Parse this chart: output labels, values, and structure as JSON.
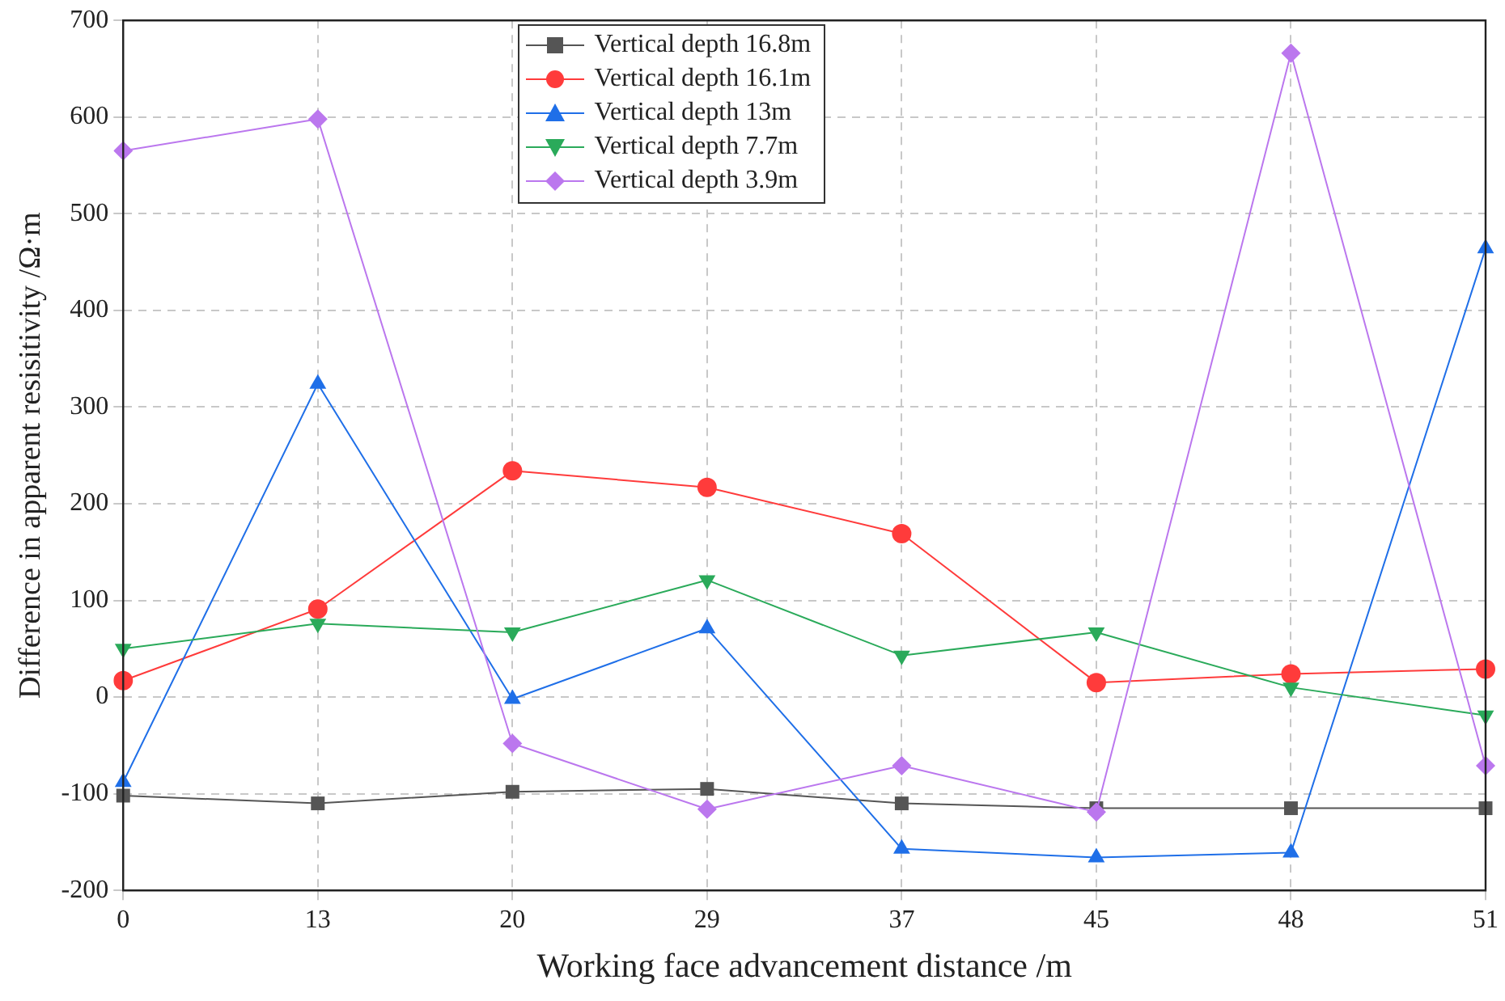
{
  "chart_data": {
    "type": "line",
    "xlabel": "Working face advancement distance /m",
    "ylabel": "Difference in apparent resisitivity /Ω·m",
    "categories": [
      "0",
      "13",
      "20",
      "29",
      "37",
      "45",
      "48",
      "51"
    ],
    "ylim": [
      -200,
      700
    ],
    "yticks": [
      -200,
      -100,
      0,
      100,
      200,
      300,
      400,
      500,
      600,
      700
    ],
    "grid": true,
    "legend": "top",
    "line_style": "solid",
    "series": [
      {
        "name": "Vertical depth 16.8m",
        "color": "#555555",
        "marker": "square",
        "values": [
          -102,
          -110,
          -98,
          -95,
          -110,
          -115,
          -115,
          -115
        ]
      },
      {
        "name": "Vertical depth 16.1m",
        "color": "#ff3b3b",
        "marker": "circle",
        "values": [
          17,
          91,
          234,
          217,
          169,
          15,
          24,
          29
        ]
      },
      {
        "name": "Vertical depth 13m",
        "color": "#1f6fe8",
        "marker": "triangle",
        "values": [
          -88,
          324,
          -2,
          71,
          -157,
          -166,
          -161,
          464
        ]
      },
      {
        "name": "Vertical depth 7.7m",
        "color": "#2aaa5a",
        "marker": "triangle-down",
        "values": [
          50,
          76,
          67,
          121,
          43,
          67,
          10,
          -19
        ]
      },
      {
        "name": "Vertical depth 3.9m",
        "color": "#bb77ee",
        "marker": "diamond",
        "values": [
          565,
          598,
          -48,
          -116,
          -71,
          -119,
          666,
          -71
        ]
      }
    ]
  }
}
